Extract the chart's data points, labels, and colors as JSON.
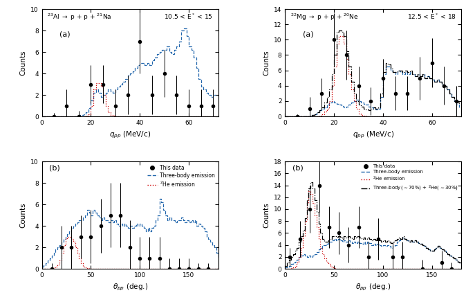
{
  "al_q_data_x": [
    5,
    10,
    15,
    20,
    25,
    30,
    35,
    40,
    45,
    50,
    55,
    60,
    65,
    70
  ],
  "al_q_data_y": [
    0,
    1,
    0,
    3,
    3,
    1,
    2,
    7,
    2,
    4,
    2,
    1,
    1,
    1
  ],
  "al_q_data_yerr": [
    0.3,
    1.5,
    0.5,
    1.8,
    1.8,
    1.5,
    1.8,
    3.0,
    1.8,
    2.2,
    1.8,
    1.5,
    1.5,
    1.5
  ],
  "al_q_blue_bins": [
    0,
    1,
    2,
    3,
    4,
    5,
    6,
    7,
    8,
    9,
    10,
    11,
    12,
    13,
    14,
    15,
    16,
    17,
    18,
    19,
    20,
    21,
    22,
    23,
    24,
    25,
    26,
    27,
    28,
    29,
    30,
    31,
    32,
    33,
    34,
    35,
    36,
    37,
    38,
    39,
    40,
    41,
    42,
    43,
    44,
    45,
    46,
    47,
    48,
    49,
    50,
    51,
    52,
    53,
    54,
    55,
    56,
    57,
    58,
    59,
    60,
    61,
    62,
    63,
    64,
    65,
    66,
    67,
    68,
    69,
    70,
    71
  ],
  "al_q_blue_y": [
    0,
    0,
    0,
    0,
    0,
    0,
    0,
    0,
    0,
    0,
    0,
    0,
    0,
    0,
    0,
    0.1,
    0.15,
    0.2,
    0.4,
    0.8,
    1.5,
    2.2,
    2.5,
    2.2,
    1.8,
    2.0,
    2.2,
    2.5,
    2.3,
    2.2,
    2.5,
    2.8,
    3.0,
    3.2,
    3.5,
    3.8,
    4.0,
    4.2,
    4.5,
    4.8,
    5.0,
    5.0,
    4.8,
    5.0,
    4.8,
    5.2,
    5.5,
    5.8,
    6.0,
    6.2,
    6.2,
    6.5,
    6.0,
    5.8,
    6.2,
    6.5,
    7.0,
    8.0,
    8.2,
    7.5,
    6.5,
    6.2,
    5.5,
    4.5,
    3.5,
    2.8,
    2.5,
    2.2,
    2.0,
    1.8,
    2.0,
    2.0
  ],
  "al_q_red_bins": [
    0,
    1,
    2,
    3,
    4,
    5,
    6,
    7,
    8,
    9,
    10,
    11,
    12,
    13,
    14,
    15,
    16,
    17,
    18,
    19,
    20,
    21,
    22,
    23,
    24,
    25,
    26,
    27,
    28,
    29,
    30,
    31,
    32,
    33,
    34,
    35,
    36,
    37,
    38,
    39,
    40,
    41,
    42,
    43,
    44,
    45,
    46,
    47,
    48,
    49,
    50,
    51,
    52,
    53,
    54,
    55,
    56,
    57,
    58,
    59,
    60,
    61,
    62,
    63,
    64,
    65,
    66,
    67,
    68,
    69,
    70,
    71
  ],
  "al_q_red_y": [
    0,
    0,
    0,
    0,
    0,
    0,
    0,
    0,
    0,
    0,
    0,
    0,
    0,
    0,
    0,
    0,
    0,
    0,
    0.05,
    0.2,
    1.0,
    2.5,
    3.1,
    3.1,
    2.8,
    2.0,
    1.0,
    0.4,
    0.1,
    0.05,
    0,
    0,
    0,
    0,
    0,
    0,
    0,
    0,
    0,
    0,
    0,
    0,
    0,
    0,
    0,
    0,
    0,
    0,
    0,
    0,
    0,
    0,
    0,
    0,
    0,
    0,
    0,
    0,
    0,
    0,
    0,
    0,
    0,
    0,
    0,
    0,
    0,
    0,
    0,
    0,
    0,
    0
  ],
  "mg_q_data_x": [
    5,
    10,
    15,
    20,
    25,
    30,
    35,
    40,
    45,
    50,
    55,
    60,
    65,
    70
  ],
  "mg_q_data_y": [
    0,
    1,
    3,
    10,
    8,
    4,
    2,
    5,
    3,
    3,
    5,
    7,
    4,
    2
  ],
  "mg_q_data_yerr": [
    0.3,
    1.5,
    2.0,
    3.5,
    3.2,
    2.5,
    1.8,
    2.5,
    2.2,
    2.2,
    2.8,
    3.2,
    2.5,
    2.0
  ],
  "mg_q_blue_bins": [
    0,
    1,
    2,
    3,
    4,
    5,
    6,
    7,
    8,
    9,
    10,
    11,
    12,
    13,
    14,
    15,
    16,
    17,
    18,
    19,
    20,
    21,
    22,
    23,
    24,
    25,
    26,
    27,
    28,
    29,
    30,
    31,
    32,
    33,
    34,
    35,
    36,
    37,
    38,
    39,
    40,
    41,
    42,
    43,
    44,
    45,
    46,
    47,
    48,
    49,
    50,
    51,
    52,
    53,
    54,
    55,
    56,
    57,
    58,
    59,
    60,
    61,
    62,
    63,
    64,
    65,
    66,
    67,
    68,
    69,
    70,
    71
  ],
  "mg_q_blue_y": [
    0,
    0,
    0,
    0,
    0,
    0,
    0,
    0,
    0,
    0,
    0.1,
    0.2,
    0.3,
    0.5,
    0.8,
    1.0,
    1.2,
    1.5,
    1.8,
    2.0,
    1.8,
    1.6,
    1.5,
    1.4,
    1.2,
    1.3,
    1.5,
    1.8,
    2.0,
    2.2,
    2.0,
    1.8,
    1.6,
    1.5,
    1.3,
    1.2,
    1.0,
    0.9,
    1.0,
    2.5,
    5.5,
    6.5,
    6.5,
    6.0,
    5.8,
    5.5,
    6.0,
    5.8,
    5.5,
    5.8,
    5.5,
    5.8,
    5.5,
    5.2,
    5.5,
    5.2,
    5.5,
    5.0,
    5.2,
    5.0,
    4.8,
    4.5,
    4.8,
    4.5,
    4.2,
    4.0,
    3.5,
    3.0,
    2.5,
    2.0,
    1.5,
    1.0
  ],
  "mg_q_red_bins": [
    0,
    1,
    2,
    3,
    4,
    5,
    6,
    7,
    8,
    9,
    10,
    11,
    12,
    13,
    14,
    15,
    16,
    17,
    18,
    19,
    20,
    21,
    22,
    23,
    24,
    25,
    26,
    27,
    28,
    29,
    30,
    31,
    32,
    33,
    34,
    35,
    36,
    37,
    38,
    39,
    40,
    41,
    42,
    43,
    44,
    45,
    46,
    47,
    48,
    49,
    50,
    51,
    52,
    53,
    54,
    55,
    56,
    57,
    58,
    59,
    60,
    61,
    62,
    63,
    64,
    65,
    66,
    67,
    68,
    69,
    70,
    71
  ],
  "mg_q_red_y": [
    0,
    0,
    0,
    0,
    0,
    0,
    0,
    0,
    0,
    0,
    0,
    0,
    0,
    0,
    0.1,
    0.3,
    0.6,
    1.0,
    2.0,
    4.0,
    6.5,
    9.5,
    10.5,
    10.5,
    9.5,
    7.5,
    5.5,
    3.5,
    2.0,
    1.0,
    0.4,
    0.15,
    0.05,
    0,
    0,
    0,
    0,
    0,
    0,
    0,
    0,
    0,
    0,
    0,
    0,
    0,
    0,
    0,
    0,
    0,
    0,
    0,
    0,
    0,
    0,
    0,
    0,
    0,
    0,
    0,
    0,
    0,
    0,
    0,
    0,
    0,
    0,
    0,
    0,
    0,
    0,
    0
  ],
  "mg_q_black_bins": [
    0,
    1,
    2,
    3,
    4,
    5,
    6,
    7,
    8,
    9,
    10,
    11,
    12,
    13,
    14,
    15,
    16,
    17,
    18,
    19,
    20,
    21,
    22,
    23,
    24,
    25,
    26,
    27,
    28,
    29,
    30,
    31,
    32,
    33,
    34,
    35,
    36,
    37,
    38,
    39,
    40,
    41,
    42,
    43,
    44,
    45,
    46,
    47,
    48,
    49,
    50,
    51,
    52,
    53,
    54,
    55,
    56,
    57,
    58,
    59,
    60,
    61,
    62,
    63,
    64,
    65,
    66,
    67,
    68,
    69,
    70,
    71
  ],
  "mg_q_black_y": [
    0,
    0,
    0,
    0,
    0,
    0,
    0,
    0,
    0,
    0,
    0.1,
    0.2,
    0.3,
    0.5,
    0.8,
    1.2,
    1.8,
    2.5,
    3.5,
    5.5,
    8.0,
    11.0,
    11.2,
    11.0,
    10.5,
    8.5,
    6.5,
    4.5,
    3.0,
    2.0,
    1.5,
    1.3,
    1.0,
    0.9,
    0.8,
    1.0,
    1.2,
    1.0,
    1.2,
    3.0,
    5.8,
    7.0,
    6.8,
    6.2,
    5.8,
    5.8,
    6.0,
    6.0,
    5.8,
    6.0,
    5.8,
    6.0,
    5.5,
    5.2,
    5.5,
    5.2,
    5.5,
    5.0,
    5.2,
    5.0,
    4.8,
    4.5,
    4.8,
    4.5,
    4.2,
    4.0,
    3.5,
    3.0,
    2.5,
    2.0,
    1.8,
    1.5
  ],
  "al_th_data_x": [
    10,
    20,
    30,
    40,
    50,
    60,
    70,
    80,
    90,
    100,
    110,
    120,
    130,
    140,
    150,
    160,
    170
  ],
  "al_th_data_y": [
    0,
    2,
    2,
    3,
    3,
    4,
    5,
    5,
    2,
    1,
    1,
    1,
    0,
    0,
    0,
    0,
    0
  ],
  "al_th_data_yerr": [
    0.5,
    2.0,
    2.0,
    2.0,
    2.5,
    2.5,
    3.0,
    3.0,
    2.5,
    2.0,
    2.0,
    2.0,
    1.0,
    1.0,
    1.0,
    0.5,
    0.5
  ],
  "al_th_blue_bins": [
    0,
    2,
    4,
    6,
    8,
    10,
    12,
    14,
    16,
    18,
    20,
    22,
    24,
    26,
    28,
    30,
    32,
    34,
    36,
    38,
    40,
    42,
    44,
    46,
    48,
    50,
    52,
    54,
    56,
    58,
    60,
    62,
    64,
    66,
    68,
    70,
    72,
    74,
    76,
    78,
    80,
    82,
    84,
    86,
    88,
    90,
    92,
    94,
    96,
    98,
    100,
    102,
    104,
    106,
    108,
    110,
    112,
    114,
    116,
    118,
    120,
    122,
    124,
    126,
    128,
    130,
    132,
    134,
    136,
    138,
    140,
    142,
    144,
    146,
    148,
    150,
    152,
    154,
    156,
    158,
    160,
    162,
    164,
    166,
    168,
    170,
    172,
    174,
    176,
    178,
    180
  ],
  "al_th_blue_y": [
    0.2,
    0.3,
    0.5,
    0.8,
    1.0,
    1.2,
    1.5,
    1.8,
    2.0,
    2.2,
    2.5,
    2.8,
    3.0,
    3.2,
    3.5,
    3.8,
    4.0,
    4.2,
    4.3,
    4.5,
    4.5,
    4.8,
    5.0,
    5.5,
    5.2,
    5.0,
    5.5,
    5.2,
    5.0,
    4.8,
    4.5,
    4.8,
    4.5,
    4.5,
    4.3,
    4.5,
    4.3,
    4.5,
    4.2,
    4.0,
    4.2,
    4.0,
    4.2,
    4.0,
    3.8,
    4.0,
    3.8,
    4.0,
    4.2,
    4.0,
    4.2,
    4.0,
    3.8,
    3.5,
    3.8,
    3.5,
    3.8,
    4.0,
    4.5,
    5.0,
    6.5,
    6.2,
    5.5,
    5.0,
    4.5,
    4.8,
    4.5,
    4.5,
    4.3,
    4.5,
    4.5,
    4.8,
    4.5,
    4.3,
    4.5,
    4.3,
    4.5,
    4.3,
    4.5,
    4.0,
    4.2,
    4.0,
    3.8,
    3.5,
    3.0,
    2.8,
    2.5,
    2.2,
    2.0,
    1.5,
    1.0
  ],
  "al_th_red_bins": [
    0,
    2,
    4,
    6,
    8,
    10,
    12,
    14,
    16,
    18,
    20,
    22,
    24,
    26,
    28,
    30,
    32,
    34,
    36,
    38,
    40,
    42,
    44,
    46,
    48,
    50,
    52,
    54,
    56,
    58,
    60,
    62,
    64,
    66,
    68,
    70,
    72,
    74,
    76,
    78,
    80,
    82,
    84,
    86,
    88,
    90,
    92,
    94,
    96,
    98,
    100,
    102,
    104,
    106,
    108,
    110,
    112,
    114,
    116,
    118,
    120,
    122,
    124,
    126,
    128,
    130,
    132,
    134,
    136,
    138,
    140,
    142,
    144,
    146,
    148,
    150,
    152,
    154,
    156,
    158,
    160,
    162,
    164,
    166,
    168,
    170,
    172,
    174,
    176,
    178,
    180
  ],
  "al_th_red_y": [
    0,
    0,
    0,
    0,
    0,
    0.05,
    0.1,
    0.2,
    0.4,
    0.8,
    1.5,
    2.2,
    2.8,
    3.0,
    3.0,
    2.8,
    2.5,
    2.0,
    1.5,
    1.0,
    0.5,
    0.2,
    0.1,
    0.05,
    0,
    0,
    0,
    0,
    0,
    0,
    0,
    0,
    0,
    0,
    0,
    0,
    0,
    0,
    0,
    0,
    0,
    0,
    0,
    0,
    0,
    0,
    0,
    0,
    0,
    0,
    0,
    0,
    0,
    0,
    0,
    0,
    0,
    0,
    0,
    0,
    0,
    0,
    0,
    0,
    0,
    0,
    0,
    0,
    0,
    0,
    0,
    0,
    0,
    0,
    0,
    0,
    0,
    0,
    0,
    0,
    0,
    0,
    0,
    0,
    0,
    0,
    0,
    0,
    0,
    0,
    0
  ],
  "mg_th_data_x": [
    5,
    15,
    25,
    35,
    45,
    55,
    65,
    75,
    85,
    95,
    110,
    120,
    140,
    160,
    170
  ],
  "mg_th_data_y": [
    2,
    5,
    10,
    14,
    7,
    6,
    4,
    7,
    2,
    5,
    2,
    2,
    0,
    1,
    0
  ],
  "mg_th_data_yerr": [
    1.5,
    3.0,
    4.0,
    4.5,
    3.5,
    3.5,
    3.0,
    3.5,
    2.5,
    3.5,
    2.5,
    2.5,
    1.5,
    2.0,
    1.0
  ],
  "mg_th_blue_bins": [
    0,
    2,
    4,
    6,
    8,
    10,
    12,
    14,
    16,
    18,
    20,
    22,
    24,
    26,
    28,
    30,
    32,
    34,
    36,
    38,
    40,
    42,
    44,
    46,
    48,
    50,
    52,
    54,
    56,
    58,
    60,
    62,
    64,
    66,
    68,
    70,
    72,
    74,
    76,
    78,
    80,
    82,
    84,
    86,
    88,
    90,
    92,
    94,
    96,
    98,
    100,
    102,
    104,
    106,
    108,
    110,
    112,
    114,
    116,
    118,
    120,
    122,
    124,
    126,
    128,
    130,
    132,
    134,
    136,
    138,
    140,
    142,
    144,
    146,
    148,
    150,
    152,
    154,
    156,
    158,
    160,
    162,
    164,
    166,
    168,
    170,
    172,
    174,
    176,
    178,
    180
  ],
  "mg_th_blue_y": [
    0.2,
    0.3,
    0.5,
    0.8,
    1.0,
    1.2,
    1.5,
    2.0,
    2.2,
    2.5,
    2.2,
    2.0,
    2.2,
    2.0,
    2.2,
    2.5,
    2.8,
    3.2,
    3.5,
    4.0,
    4.0,
    4.2,
    4.5,
    4.5,
    4.8,
    5.0,
    4.8,
    5.0,
    4.8,
    4.5,
    4.8,
    4.5,
    4.8,
    4.5,
    4.3,
    4.5,
    4.3,
    4.5,
    4.3,
    4.2,
    4.5,
    4.2,
    4.5,
    4.3,
    4.0,
    4.2,
    4.0,
    4.2,
    4.0,
    3.8,
    4.0,
    3.8,
    4.0,
    3.8,
    3.5,
    3.8,
    4.0,
    4.5,
    4.8,
    5.0,
    5.2,
    5.0,
    4.8,
    4.5,
    4.8,
    4.5,
    4.8,
    4.5,
    4.3,
    4.2,
    4.0,
    3.8,
    3.5,
    3.3,
    3.0,
    3.0,
    3.2,
    3.5,
    3.8,
    3.5,
    3.2,
    3.0,
    2.8,
    2.5,
    2.2,
    2.0,
    1.8,
    1.5,
    1.2,
    1.0,
    0.8
  ],
  "mg_th_red_bins": [
    0,
    2,
    4,
    6,
    8,
    10,
    12,
    14,
    16,
    18,
    20,
    22,
    24,
    26,
    28,
    30,
    32,
    34,
    36,
    38,
    40,
    42,
    44,
    46,
    48,
    50,
    52,
    54,
    56,
    58,
    60,
    62,
    64,
    66,
    68,
    70,
    72,
    74,
    76,
    78,
    80,
    82,
    84,
    86,
    88,
    90,
    92,
    94,
    96,
    98,
    100,
    102,
    104,
    106,
    108,
    110,
    112,
    114,
    116,
    118,
    120,
    122,
    124,
    126,
    128,
    130,
    132,
    134,
    136,
    138,
    140,
    142,
    144,
    146,
    148,
    150,
    152,
    154,
    156,
    158,
    160,
    162,
    164,
    166,
    168,
    170,
    172,
    174,
    176,
    178,
    180
  ],
  "mg_th_red_y": [
    0,
    0,
    0.05,
    0.1,
    0.2,
    0.5,
    1.0,
    2.0,
    3.5,
    5.5,
    8.0,
    11.0,
    13.0,
    12.5,
    11.0,
    9.0,
    7.0,
    5.0,
    3.5,
    2.5,
    1.8,
    1.2,
    0.8,
    0.4,
    0.2,
    0.1,
    0.05,
    0,
    0,
    0,
    0,
    0,
    0,
    0,
    0,
    0,
    0,
    0,
    0,
    0,
    0,
    0,
    0,
    0,
    0,
    0,
    0,
    0,
    0,
    0,
    0,
    0,
    0,
    0,
    0,
    0,
    0,
    0,
    0,
    0,
    0,
    0,
    0,
    0,
    0,
    0,
    0,
    0,
    0,
    0,
    0,
    0,
    0,
    0,
    0,
    0,
    0,
    0,
    0,
    0,
    0,
    0,
    0,
    0,
    0,
    0,
    0,
    0,
    0,
    0
  ],
  "mg_th_black_bins": [
    0,
    2,
    4,
    6,
    8,
    10,
    12,
    14,
    16,
    18,
    20,
    22,
    24,
    26,
    28,
    30,
    32,
    34,
    36,
    38,
    40,
    42,
    44,
    46,
    48,
    50,
    52,
    54,
    56,
    58,
    60,
    62,
    64,
    66,
    68,
    70,
    72,
    74,
    76,
    78,
    80,
    82,
    84,
    86,
    88,
    90,
    92,
    94,
    96,
    98,
    100,
    102,
    104,
    106,
    108,
    110,
    112,
    114,
    116,
    118,
    120,
    122,
    124,
    126,
    128,
    130,
    132,
    134,
    136,
    138,
    140,
    142,
    144,
    146,
    148,
    150,
    152,
    154,
    156,
    158,
    160,
    162,
    164,
    166,
    168,
    170,
    172,
    174,
    176,
    178,
    180
  ],
  "mg_th_black_y": [
    0.5,
    1.0,
    1.5,
    2.0,
    2.5,
    3.0,
    3.5,
    4.5,
    5.5,
    6.5,
    8.5,
    11.5,
    13.5,
    14.5,
    13.5,
    11.5,
    9.5,
    7.5,
    6.0,
    5.0,
    4.5,
    4.5,
    5.0,
    5.0,
    5.5,
    5.5,
    5.3,
    5.5,
    5.3,
    5.0,
    5.5,
    5.2,
    5.5,
    5.2,
    5.0,
    5.5,
    5.2,
    5.5,
    5.2,
    5.0,
    5.2,
    5.0,
    5.2,
    5.0,
    4.8,
    5.0,
    4.8,
    5.0,
    4.8,
    4.5,
    4.8,
    4.5,
    4.8,
    4.5,
    4.3,
    4.5,
    4.8,
    5.0,
    5.2,
    5.0,
    5.5,
    5.0,
    4.8,
    4.5,
    4.8,
    4.5,
    4.8,
    4.5,
    4.3,
    4.2,
    4.0,
    3.8,
    3.5,
    3.3,
    3.0,
    3.0,
    3.2,
    3.5,
    3.8,
    3.5,
    3.2,
    3.0,
    2.8,
    2.5,
    2.2,
    2.0,
    1.8,
    1.5,
    1.2,
    1.0,
    0.8
  ],
  "blue_color": "#2166ac",
  "red_color": "#cc0000",
  "black_color": "#000000"
}
